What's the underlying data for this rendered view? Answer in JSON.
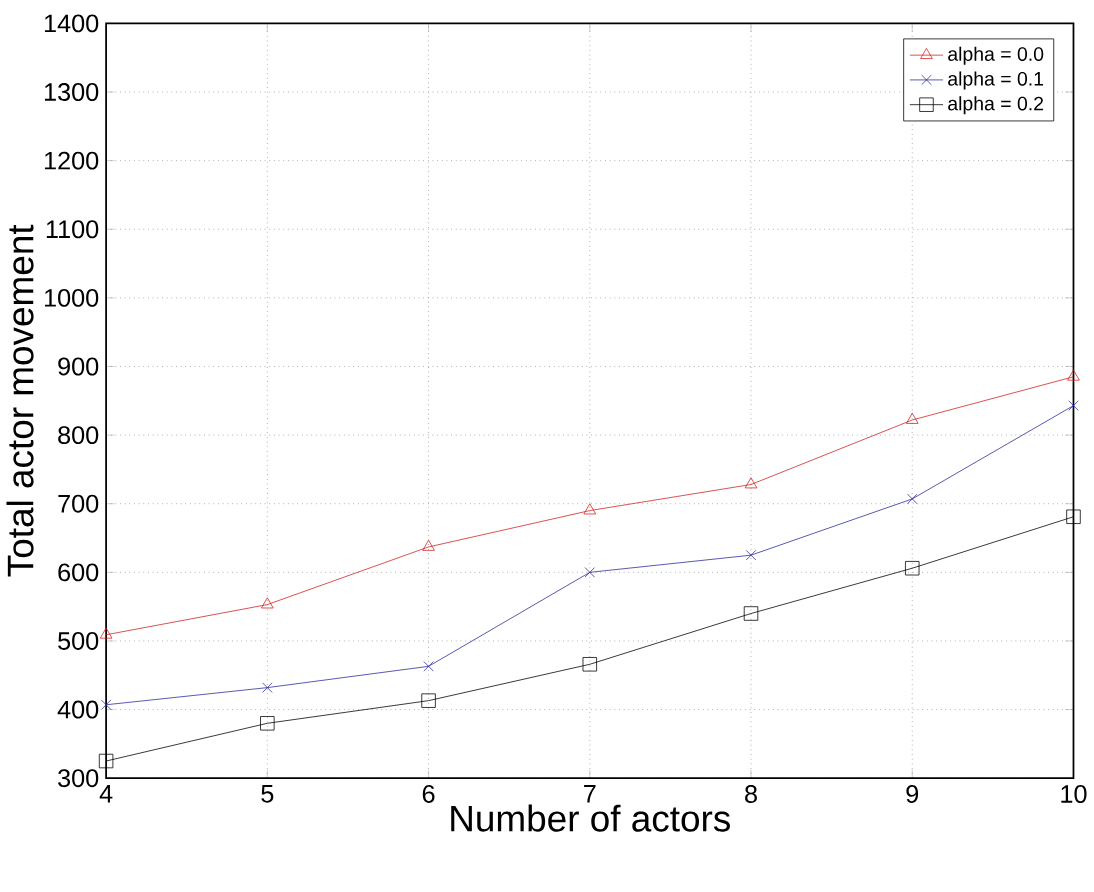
{
  "chart_data": {
    "type": "line",
    "xlabel": "Number of actors",
    "ylabel": "Total actor movement",
    "x": [
      4,
      5,
      6,
      7,
      8,
      9,
      10
    ],
    "series": [
      {
        "name": "alpha = 0.0",
        "color": "#d02020",
        "marker": "triangle",
        "values": [
          509,
          553,
          637,
          690,
          728,
          822,
          885
        ]
      },
      {
        "name": "alpha = 0.1",
        "color": "#2a2a9a",
        "marker": "cross",
        "values": [
          407,
          432,
          463,
          600,
          625,
          707,
          843
        ]
      },
      {
        "name": "alpha = 0.2",
        "color": "#000000",
        "marker": "square",
        "values": [
          325,
          380,
          413,
          466,
          540,
          606,
          681
        ]
      }
    ],
    "xlim": [
      4,
      10
    ],
    "xticks": [
      4,
      5,
      6,
      7,
      8,
      9,
      10
    ],
    "ylim": [
      300,
      1400
    ],
    "yticks": [
      300,
      400,
      500,
      600,
      700,
      800,
      900,
      1000,
      1100,
      1200,
      1300,
      1400
    ],
    "grid": true,
    "legend": "top right",
    "line_style": "solid"
  }
}
